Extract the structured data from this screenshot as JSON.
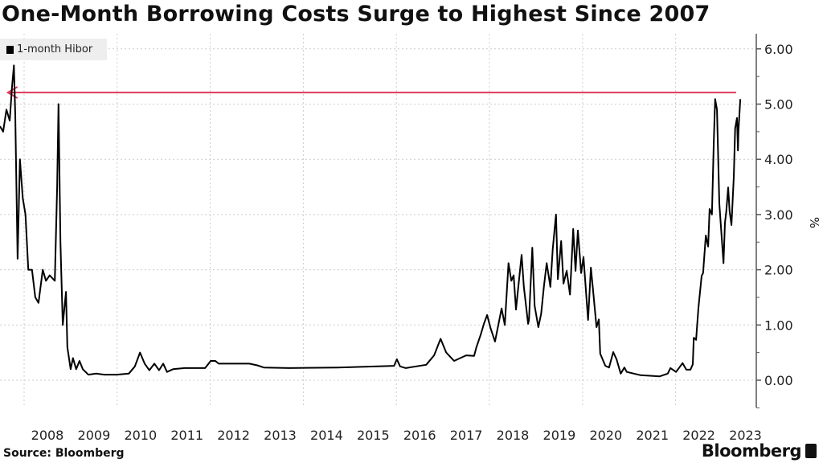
{
  "title": "One-Month Borrowing Costs Surge to Highest Since 2007",
  "source": "Source: Bloomberg",
  "brand": "Bloomberg",
  "chart_data": {
    "type": "line",
    "title": "One-Month Borrowing Costs Surge to Highest Since 2007",
    "xlabel": "",
    "ylabel": "%",
    "xlim": [
      2007.48,
      2023.76
    ],
    "ylim": [
      -0.5,
      6.3
    ],
    "y_ticks": [
      "0.00",
      "1.00",
      "2.00",
      "3.00",
      "4.00",
      "5.00",
      "6.00"
    ],
    "x_ticks": [
      "2008",
      "2009",
      "2010",
      "2011",
      "2012",
      "2013",
      "2014",
      "2015",
      "2016",
      "2017",
      "2018",
      "2019",
      "2020",
      "2021",
      "2022",
      "2023"
    ],
    "grid": true,
    "legend": {
      "position": "top-left",
      "entries": [
        "1-month Hibor"
      ]
    },
    "colors": {
      "line": "#000000",
      "annotation": "#e0385a",
      "grid": "#cccccc"
    },
    "annotation": {
      "type": "arrow",
      "from": [
        2023.3,
        5.21
      ],
      "to": [
        2007.65,
        5.21
      ]
    },
    "series": [
      {
        "name": "1-month Hibor",
        "points": [
          [
            2007.48,
            4.6
          ],
          [
            2007.55,
            4.5
          ],
          [
            2007.62,
            4.9
          ],
          [
            2007.69,
            4.7
          ],
          [
            2007.74,
            5.3
          ],
          [
            2007.78,
            5.7
          ],
          [
            2007.81,
            4.8
          ],
          [
            2007.86,
            2.2
          ],
          [
            2007.91,
            4.0
          ],
          [
            2007.97,
            3.3
          ],
          [
            2008.03,
            3.0
          ],
          [
            2008.09,
            2.0
          ],
          [
            2008.17,
            2.0
          ],
          [
            2008.24,
            1.5
          ],
          [
            2008.31,
            1.4
          ],
          [
            2008.4,
            2.0
          ],
          [
            2008.47,
            1.8
          ],
          [
            2008.55,
            1.9
          ],
          [
            2008.66,
            1.8
          ],
          [
            2008.71,
            3.5
          ],
          [
            2008.74,
            5.0
          ],
          [
            2008.78,
            2.5
          ],
          [
            2008.83,
            1.0
          ],
          [
            2008.9,
            1.6
          ],
          [
            2008.93,
            0.6
          ],
          [
            2009.0,
            0.2
          ],
          [
            2009.05,
            0.4
          ],
          [
            2009.12,
            0.2
          ],
          [
            2009.19,
            0.35
          ],
          [
            2009.26,
            0.2
          ],
          [
            2009.38,
            0.1
          ],
          [
            2009.55,
            0.12
          ],
          [
            2009.73,
            0.1
          ],
          [
            2009.99,
            0.1
          ],
          [
            2010.25,
            0.12
          ],
          [
            2010.38,
            0.25
          ],
          [
            2010.49,
            0.5
          ],
          [
            2010.59,
            0.3
          ],
          [
            2010.69,
            0.18
          ],
          [
            2010.8,
            0.3
          ],
          [
            2010.9,
            0.18
          ],
          [
            2010.99,
            0.3
          ],
          [
            2011.07,
            0.15
          ],
          [
            2011.2,
            0.2
          ],
          [
            2011.45,
            0.22
          ],
          [
            2011.89,
            0.22
          ],
          [
            2012.01,
            0.35
          ],
          [
            2012.11,
            0.35
          ],
          [
            2012.18,
            0.3
          ],
          [
            2012.84,
            0.3
          ],
          [
            2013.01,
            0.27
          ],
          [
            2013.15,
            0.23
          ],
          [
            2013.7,
            0.22
          ],
          [
            2014.74,
            0.23
          ],
          [
            2015.6,
            0.25
          ],
          [
            2015.95,
            0.26
          ],
          [
            2016.01,
            0.38
          ],
          [
            2016.08,
            0.25
          ],
          [
            2016.2,
            0.22
          ],
          [
            2016.64,
            0.28
          ],
          [
            2016.81,
            0.45
          ],
          [
            2016.95,
            0.75
          ],
          [
            2017.07,
            0.5
          ],
          [
            2017.24,
            0.35
          ],
          [
            2017.5,
            0.45
          ],
          [
            2017.67,
            0.44
          ],
          [
            2017.72,
            0.6
          ],
          [
            2017.81,
            0.82
          ],
          [
            2017.88,
            1.02
          ],
          [
            2017.95,
            1.18
          ],
          [
            2018.02,
            0.95
          ],
          [
            2018.12,
            0.7
          ],
          [
            2018.19,
            1.0
          ],
          [
            2018.26,
            1.3
          ],
          [
            2018.33,
            1.0
          ],
          [
            2018.41,
            2.12
          ],
          [
            2018.47,
            1.8
          ],
          [
            2018.52,
            1.9
          ],
          [
            2018.57,
            1.28
          ],
          [
            2018.62,
            1.69
          ],
          [
            2018.69,
            2.27
          ],
          [
            2018.74,
            1.69
          ],
          [
            2018.83,
            1.02
          ],
          [
            2018.85,
            1.1
          ],
          [
            2018.92,
            2.4
          ],
          [
            2018.97,
            1.35
          ],
          [
            2019.05,
            0.96
          ],
          [
            2019.11,
            1.2
          ],
          [
            2019.17,
            1.69
          ],
          [
            2019.23,
            2.12
          ],
          [
            2019.31,
            1.69
          ],
          [
            2019.36,
            2.37
          ],
          [
            2019.43,
            3.0
          ],
          [
            2019.47,
            1.83
          ],
          [
            2019.54,
            2.52
          ],
          [
            2019.59,
            1.75
          ],
          [
            2019.66,
            1.98
          ],
          [
            2019.73,
            1.55
          ],
          [
            2019.8,
            2.74
          ],
          [
            2019.85,
            1.98
          ],
          [
            2019.9,
            2.71
          ],
          [
            2019.97,
            1.94
          ],
          [
            2020.02,
            2.23
          ],
          [
            2020.12,
            1.09
          ],
          [
            2020.18,
            2.04
          ],
          [
            2020.23,
            1.6
          ],
          [
            2020.3,
            0.96
          ],
          [
            2020.35,
            1.1
          ],
          [
            2020.38,
            0.48
          ],
          [
            2020.49,
            0.26
          ],
          [
            2020.57,
            0.23
          ],
          [
            2020.66,
            0.51
          ],
          [
            2020.73,
            0.38
          ],
          [
            2020.82,
            0.12
          ],
          [
            2020.9,
            0.23
          ],
          [
            2020.95,
            0.15
          ],
          [
            2021.25,
            0.09
          ],
          [
            2021.66,
            0.07
          ],
          [
            2021.83,
            0.12
          ],
          [
            2021.89,
            0.22
          ],
          [
            2022.01,
            0.15
          ],
          [
            2022.15,
            0.31
          ],
          [
            2022.23,
            0.19
          ],
          [
            2022.32,
            0.19
          ],
          [
            2022.37,
            0.29
          ],
          [
            2022.39,
            0.77
          ],
          [
            2022.44,
            0.73
          ],
          [
            2022.49,
            1.31
          ],
          [
            2022.56,
            1.89
          ],
          [
            2022.59,
            1.94
          ],
          [
            2022.65,
            2.62
          ],
          [
            2022.7,
            2.42
          ],
          [
            2022.73,
            3.1
          ],
          [
            2022.78,
            3.0
          ],
          [
            2022.82,
            4.31
          ],
          [
            2022.85,
            5.09
          ],
          [
            2022.89,
            4.9
          ],
          [
            2022.94,
            3.2
          ],
          [
            2023.03,
            2.12
          ],
          [
            2023.06,
            2.85
          ],
          [
            2023.09,
            3.06
          ],
          [
            2023.13,
            3.49
          ],
          [
            2023.16,
            3.06
          ],
          [
            2023.2,
            2.81
          ],
          [
            2023.25,
            3.68
          ],
          [
            2023.28,
            4.56
          ],
          [
            2023.32,
            4.75
          ],
          [
            2023.34,
            4.16
          ],
          [
            2023.35,
            4.51
          ],
          [
            2023.39,
            5.09
          ]
        ]
      }
    ]
  }
}
